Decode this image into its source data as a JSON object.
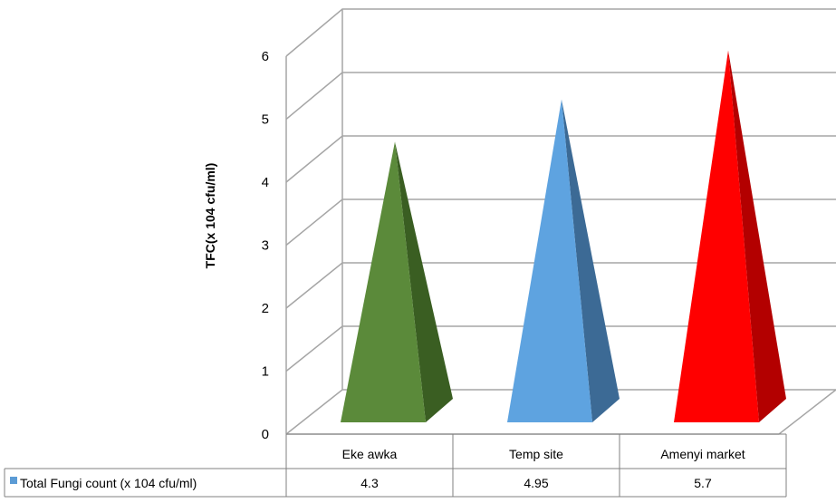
{
  "chart_data": {
    "type": "bar",
    "bar_shape": "pyramid-3d",
    "categories": [
      "Eke awka",
      "Temp site",
      "Amenyi market"
    ],
    "series": [
      {
        "name": "Total Fungi count (x 104 cfu/ml)",
        "values": [
          4.3,
          4.95,
          5.7
        ]
      }
    ],
    "value_labels": [
      "4.3",
      "4.95",
      "5.7"
    ],
    "ylabel": "TFC(x 104 cfu/ml)",
    "ylim": [
      0,
      6
    ],
    "yticks": [
      "0",
      "1",
      "2",
      "3",
      "4",
      "5",
      "6"
    ],
    "grid": true,
    "legend": "data-table",
    "colors": {
      "bars": [
        "#5b8a3a",
        "#5ea3e0",
        "#ff0000"
      ],
      "bars_shade": [
        "#3a5e22",
        "#3c6a95",
        "#b30000"
      ],
      "legend_key": "#5b9bd5",
      "grid": "#a6a6a6"
    }
  }
}
